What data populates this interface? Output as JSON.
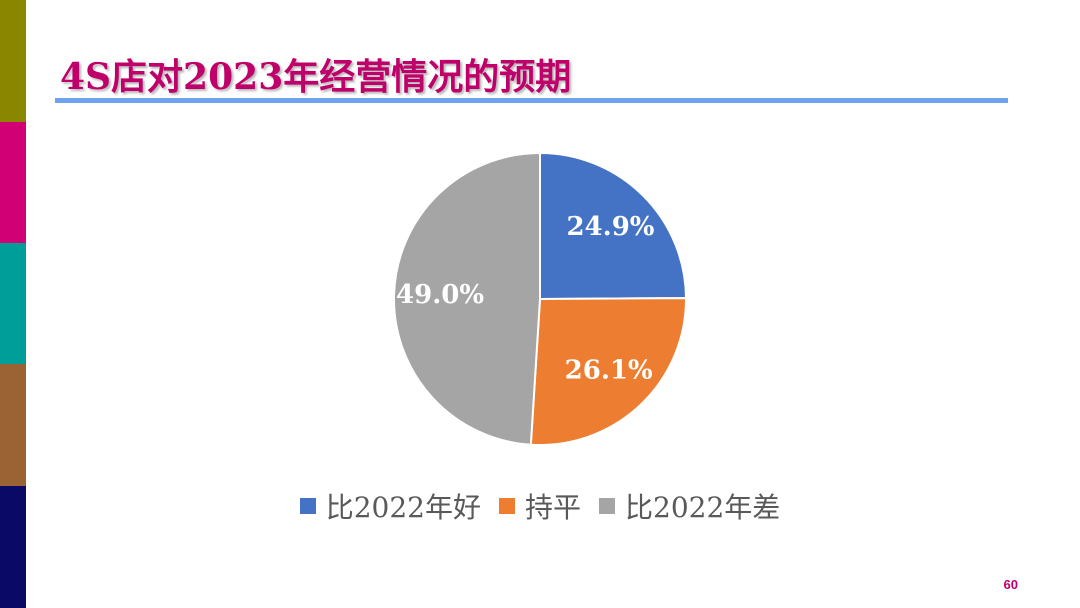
{
  "slide": {
    "title": "4S店对2023年经营情况的预期",
    "page_number": "60",
    "accent_color": "#C0006A",
    "rule_color": "#6FA3F0",
    "side_strip_colors": [
      "#8B8600",
      "#D10075",
      "#009E99",
      "#9B6234",
      "#0A0A66"
    ]
  },
  "chart_data": {
    "type": "pie",
    "title": "",
    "slices": [
      {
        "name": "比2022年好",
        "value": 24.9,
        "label": "24.9%",
        "color": "#4472C4"
      },
      {
        "name": "持平",
        "value": 26.1,
        "label": "26.1%",
        "color": "#ED7D31"
      },
      {
        "name": "比2022年差",
        "value": 49.0,
        "label": "49.0%",
        "color": "#A5A5A5"
      }
    ],
    "start_angle": "12 o'clock",
    "direction": "clockwise",
    "legend_position": "bottom"
  }
}
